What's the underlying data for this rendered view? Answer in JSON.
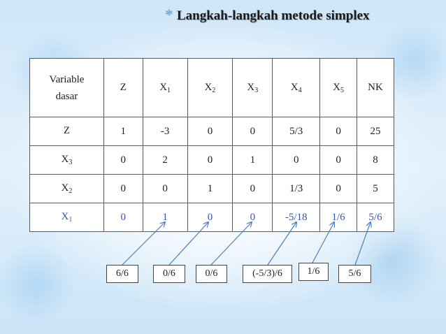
{
  "slide": {
    "bullet_icon": "asterisk-bullet-icon",
    "title": "Langkah-langkah metode simplex"
  },
  "table": {
    "header": {
      "variable_dasar_line1": "Variable",
      "variable_dasar_line2": "dasar",
      "columns": [
        {
          "base": "Z",
          "sub": ""
        },
        {
          "base": "X",
          "sub": "1"
        },
        {
          "base": "X",
          "sub": "2"
        },
        {
          "base": "X",
          "sub": "3"
        },
        {
          "base": "X",
          "sub": "4"
        },
        {
          "base": "X",
          "sub": "5"
        },
        {
          "base": "NK",
          "sub": ""
        }
      ]
    },
    "rows": [
      {
        "var_base": "Z",
        "var_sub": "",
        "values": [
          "1",
          "-3",
          "0",
          "0",
          "5/3",
          "0",
          "25"
        ]
      },
      {
        "var_base": "X",
        "var_sub": "3",
        "values": [
          "0",
          "2",
          "0",
          "1",
          "0",
          "0",
          "8"
        ]
      },
      {
        "var_base": "X",
        "var_sub": "2",
        "values": [
          "0",
          "0",
          "1",
          "0",
          "1/3",
          "0",
          "5"
        ]
      },
      {
        "var_base": "X",
        "var_sub": "1",
        "values": [
          "0",
          "1",
          "0",
          "0",
          "-5/18",
          "1/6",
          "5/6"
        ]
      }
    ],
    "highlight_color": "#3a55a8"
  },
  "calculations": [
    "6/6",
    "0/6",
    "0/6",
    "(-5/3)/6",
    "1/6",
    "5/6"
  ]
}
